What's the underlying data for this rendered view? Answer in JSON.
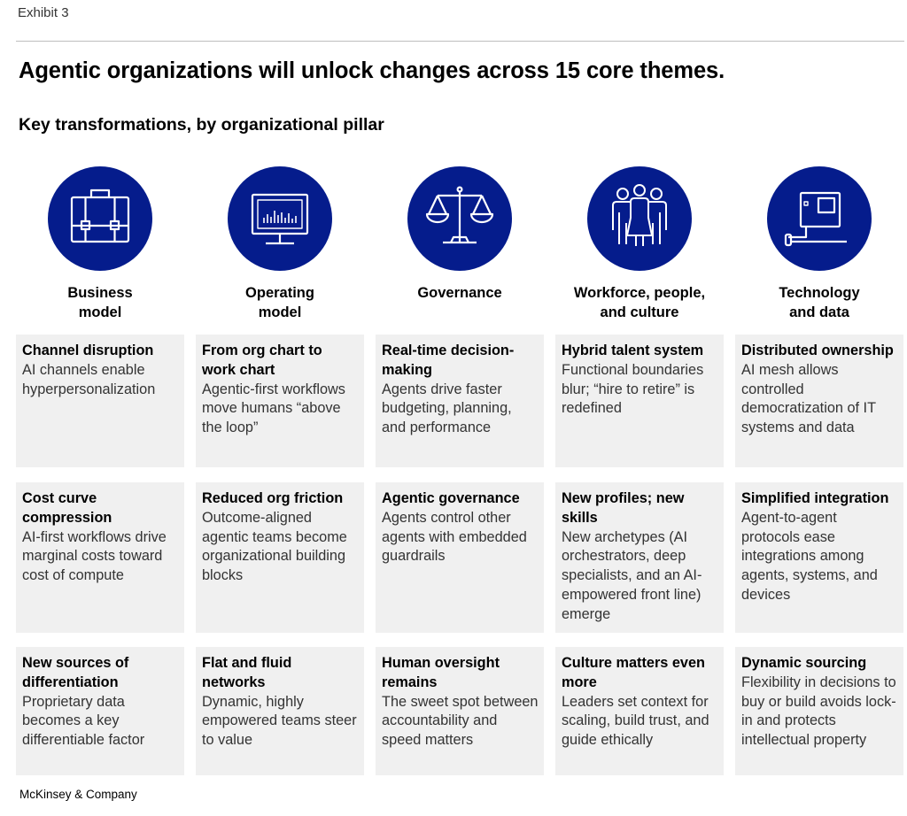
{
  "exhibit_label": "Exhibit 3",
  "title": "Agentic organizations will unlock changes across 15 core themes.",
  "subtitle": "Key transformations, by organizational pillar",
  "colors": {
    "circle": "#051c8c",
    "cell_bg": "#f0f0f0"
  },
  "pillars": [
    {
      "label": "Business\nmodel",
      "icon": "briefcase-icon"
    },
    {
      "label": "Operating\nmodel",
      "icon": "monitor-chart-icon"
    },
    {
      "label": "Governance",
      "icon": "scales-icon"
    },
    {
      "label": "Workforce, people,\nand culture",
      "icon": "people-group-icon"
    },
    {
      "label": "Technology\nand data",
      "icon": "device-chip-icon"
    }
  ],
  "rows": [
    [
      {
        "title": "Channel disruption",
        "body": "AI channels enable hyperpersonalization"
      },
      {
        "title": "From org chart to work chart",
        "body": "Agentic-first workflows move humans “above the loop”"
      },
      {
        "title": "Real-time decision-making",
        "body": "Agents drive faster budgeting, planning, and performance"
      },
      {
        "title": "Hybrid talent system",
        "body": "Functional boundaries blur; “hire to retire” is redefined"
      },
      {
        "title": "Distributed ownership",
        "body": "AI mesh allows controlled democratization of IT systems and data"
      }
    ],
    [
      {
        "title": "Cost curve compression",
        "body": "AI-first workflows drive marginal costs toward cost of compute"
      },
      {
        "title": "Reduced org friction",
        "body": "Outcome-aligned agentic teams become organizational building blocks"
      },
      {
        "title": "Agentic governance",
        "body": "Agents control other agents with embedded guardrails"
      },
      {
        "title": "New profiles; new skills",
        "body": "New archetypes (AI orchestrators, deep specialists, and an AI-empowered front line) emerge"
      },
      {
        "title": "Simplified integration",
        "body": "Agent-to-agent protocols ease integrations among agents, systems, and devices"
      }
    ],
    [
      {
        "title": "New sources of differentiation",
        "body": "Proprietary data becomes a key differentiable factor"
      },
      {
        "title": "Flat and fluid networks",
        "body": "Dynamic, highly empowered teams steer to value"
      },
      {
        "title": "Human oversight remains",
        "body": "The sweet spot between accountability and speed matters"
      },
      {
        "title": "Culture matters even more",
        "body": "Leaders set context for scaling, build trust, and guide ethically"
      },
      {
        "title": "Dynamic sourcing",
        "body": "Flexibility in decisions to buy or build avoids lock-in and protects intellectual property"
      }
    ]
  ],
  "footer": "McKinsey & Company"
}
